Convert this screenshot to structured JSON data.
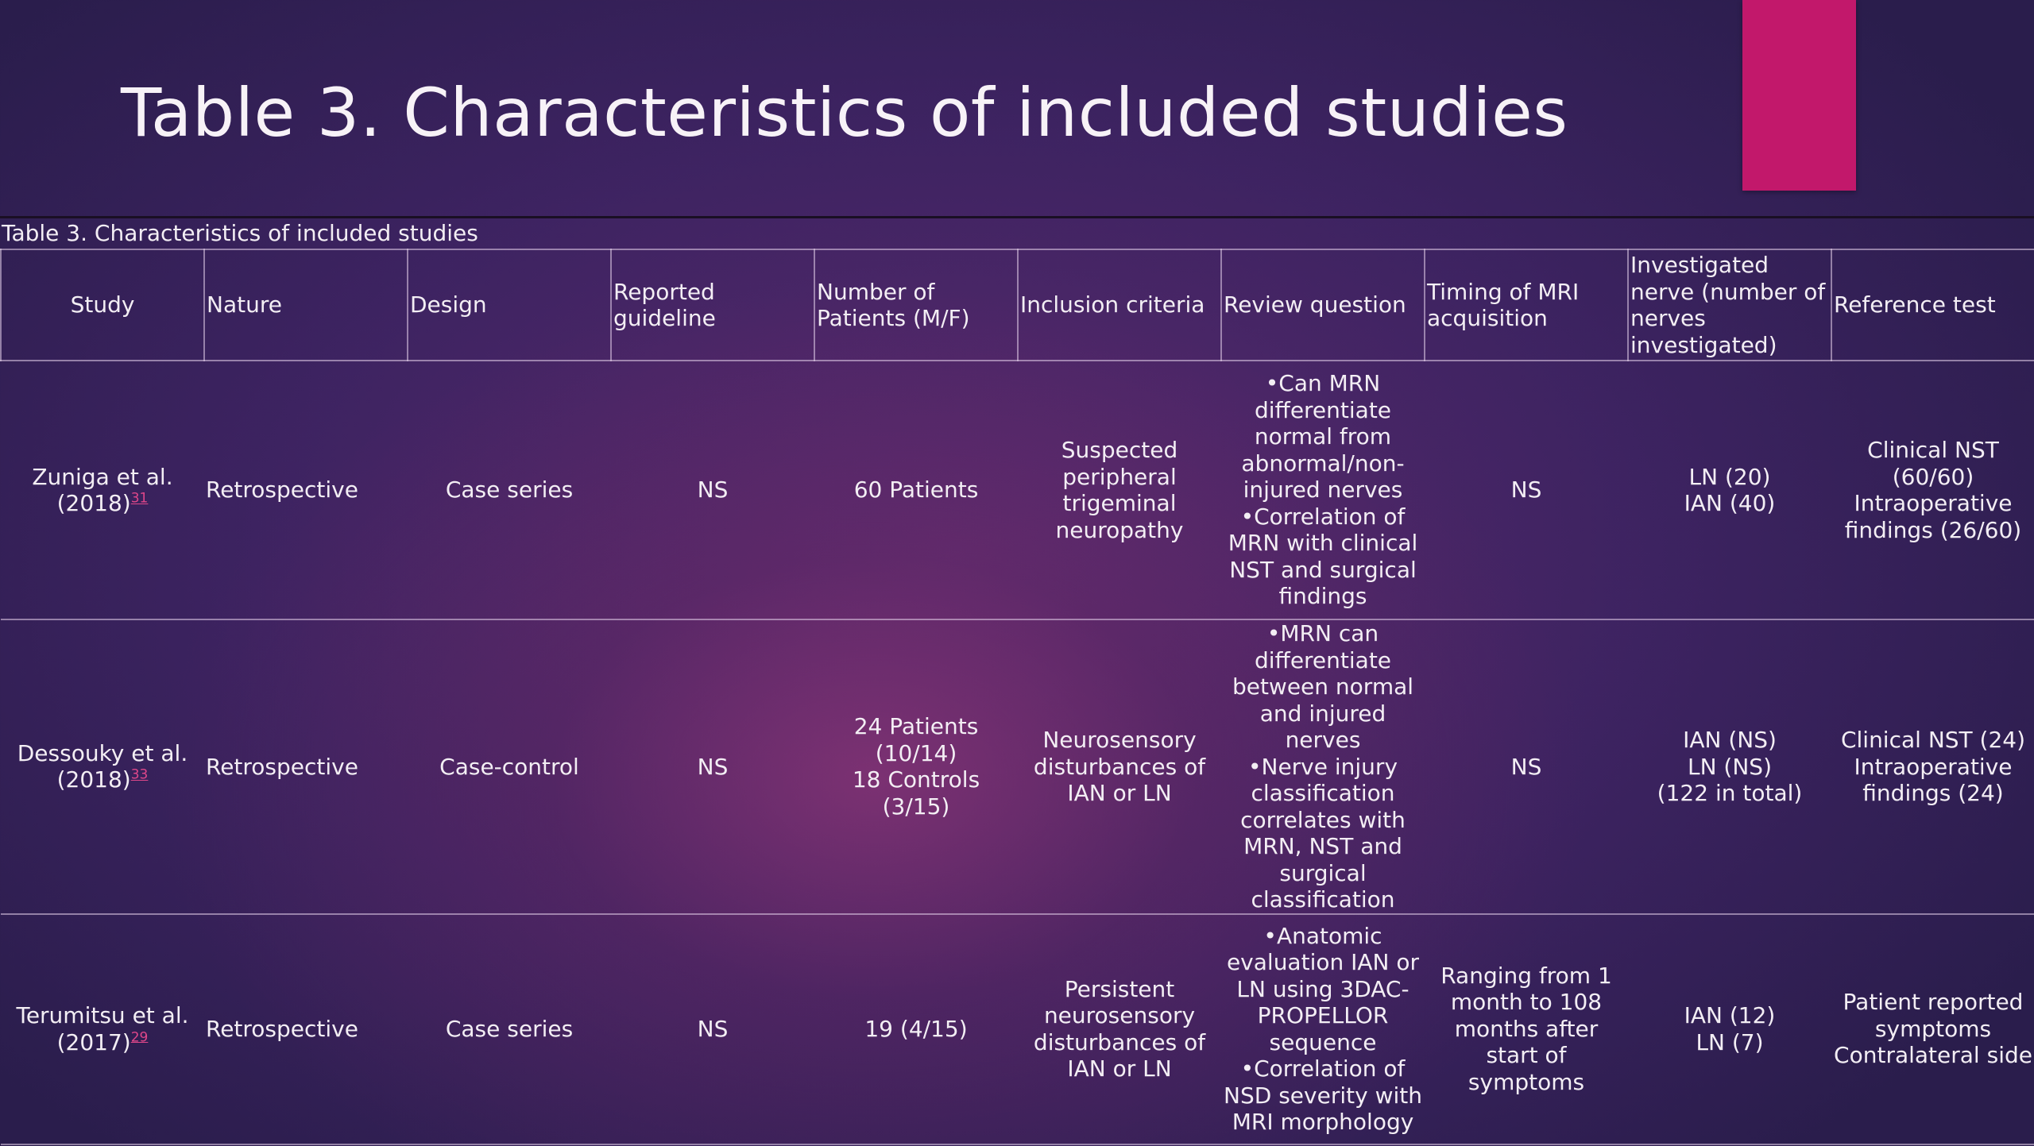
{
  "slide": {
    "title": "Table 3. Characteristics of included studies",
    "accent_color": "#c2186b"
  },
  "table": {
    "caption": "Table 3. Characteristics of included studies",
    "headers": [
      "Study",
      "Nature",
      "Design",
      "Reported guideline",
      "Number of Patients (M/F)",
      "Inclusion criteria",
      "Review question",
      "Timing of MRI acquisition",
      "Investigated nerve (number of nerves investigated)",
      "Reference test"
    ],
    "rows": [
      {
        "study": "Zuniga et al. (2018)",
        "study_ref": "31",
        "nature": "Retrospective",
        "design": "Case series",
        "guideline": "NS",
        "patients": "60 Patients",
        "inclusion": "Suspected peripheral trigeminal neuropathy",
        "review_q1": "•Can MRN differentiate normal from abnormal/non-injured nerves",
        "review_q2": "•Correlation of MRN with clinical NST and surgical findings",
        "timing": "NS",
        "nerve_1": "LN (20)",
        "nerve_2": "IAN (40)",
        "nerve_3": "",
        "ref_1": "Clinical NST (60/60)",
        "ref_2": "Intraoperative findings (26/60)"
      },
      {
        "study": "Dessouky et al. (2018)",
        "study_ref": "33",
        "nature": "Retrospective",
        "design": "Case-control",
        "guideline": "NS",
        "patients_1": "24 Patients (10/14)",
        "patients_2": "18 Controls (3/15)",
        "inclusion": "Neurosensory disturbances of IAN or LN",
        "review_q1": "•MRN can differentiate between normal and injured nerves",
        "review_q2": "•Nerve injury classification correlates with MRN, NST and surgical classification",
        "timing": "NS",
        "nerve_1": "IAN (NS)",
        "nerve_2": "LN (NS)",
        "nerve_3": "(122 in total)",
        "ref_1": "Clinical NST (24)",
        "ref_2": "Intraoperative findings (24)"
      },
      {
        "study": "Terumitsu et al. (2017)",
        "study_ref": "29",
        "nature": "Retrospective",
        "design": "Case series",
        "guideline": "NS",
        "patients": "19 (4/15)",
        "inclusion": "Persistent neurosensory disturbances of IAN or LN",
        "review_q1": "•Anatomic evaluation IAN or LN using 3DAC-PROPELLOR sequence",
        "review_q2": "•Correlation of NSD severity with MRI morphology",
        "timing": "Ranging from 1 month to 108 months after start of symptoms",
        "nerve_1": "IAN (12)",
        "nerve_2": "LN (7)",
        "nerve_3": "",
        "ref_1": "Patient reported symptoms",
        "ref_2": "Contralateral side"
      }
    ]
  }
}
